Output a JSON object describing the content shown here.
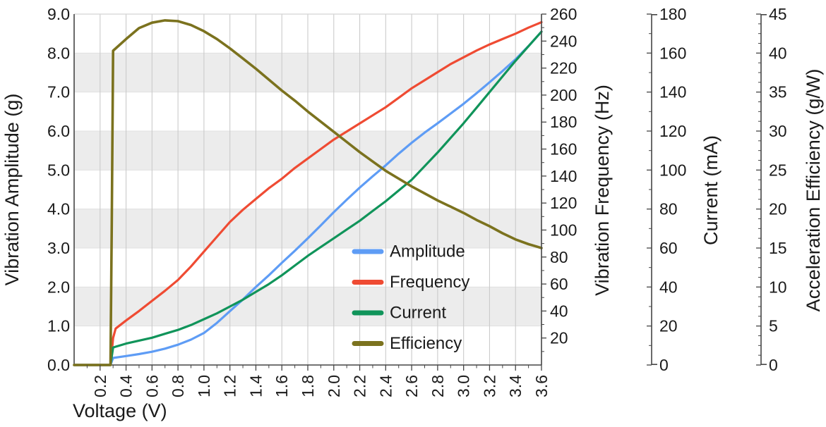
{
  "chart_data": {
    "type": "line",
    "title": "",
    "xlabel": "Voltage (V)",
    "xlim": [
      0,
      3.6
    ],
    "x_tick_values": [
      0.2,
      0.4,
      0.6,
      0.8,
      1.0,
      1.2,
      1.4,
      1.6,
      1.8,
      2.0,
      2.2,
      2.4,
      2.6,
      2.8,
      3.0,
      3.2,
      3.4,
      3.6
    ],
    "x_tick_labels": [
      "0.2",
      "0.4",
      "0.6",
      "0.8",
      "1.0",
      "1.2",
      "1.4",
      "1.6",
      "1.8",
      "2.0",
      "2.2",
      "2.4",
      "2.6",
      "2.8",
      "3.0",
      "3.2",
      "3.4",
      "3.6"
    ],
    "x_minor_step": 0.1,
    "grid": "vertical-gridlines-plus-horizontal-bands",
    "legend_position": "inside-right-middle",
    "axes": [
      {
        "id": "amplitude",
        "label": "Vibration Amplitude (g)",
        "side": "left",
        "range": [
          0,
          9
        ],
        "tick_values": [
          0,
          1,
          2,
          3,
          4,
          5,
          6,
          7,
          8,
          9
        ],
        "tick_labels": [
          "0.0",
          "1.0",
          "2.0",
          "3.0",
          "4.0",
          "5.0",
          "6.0",
          "7.0",
          "8.0",
          "9.0"
        ]
      },
      {
        "id": "frequency",
        "label": "Vibration Frequency (Hz)",
        "side": "right",
        "range": [
          0,
          260
        ],
        "tick_values": [
          20,
          40,
          60,
          80,
          100,
          120,
          140,
          160,
          180,
          200,
          220,
          240,
          260
        ],
        "tick_labels": [
          "20",
          "40",
          "60",
          "80",
          "100",
          "120",
          "140",
          "160",
          "180",
          "200",
          "220",
          "240",
          "260"
        ],
        "minor_step": 10
      },
      {
        "id": "current",
        "label": "Current (mA)",
        "side": "right-detached",
        "range": [
          0,
          180
        ],
        "tick_values": [
          0,
          20,
          40,
          60,
          80,
          100,
          120,
          140,
          160,
          180
        ],
        "tick_labels": [
          "0",
          "20",
          "40",
          "60",
          "80",
          "100",
          "120",
          "140",
          "160",
          "180"
        ],
        "minor_step": 10
      },
      {
        "id": "efficiency",
        "label": "Acceleration Efficiency (g/W)",
        "side": "right-detached",
        "range": [
          0,
          45
        ],
        "tick_values": [
          0,
          5,
          10,
          15,
          20,
          25,
          30,
          35,
          40,
          45
        ],
        "tick_labels": [
          "0",
          "5",
          "10",
          "15",
          "20",
          "25",
          "30",
          "35",
          "40",
          "45"
        ],
        "minor_step": 1.25
      }
    ],
    "series": [
      {
        "name": "Amplitude",
        "axis": "amplitude",
        "unit": "g",
        "color": "#5E9CF5",
        "x": [
          0,
          0.28,
          0.3,
          0.4,
          0.5,
          0.6,
          0.7,
          0.8,
          0.9,
          1.0,
          1.1,
          1.2,
          1.3,
          1.4,
          1.5,
          1.6,
          1.7,
          1.8,
          1.9,
          2.0,
          2.1,
          2.2,
          2.3,
          2.4,
          2.5,
          2.6,
          2.7,
          2.8,
          2.9,
          3.0,
          3.1,
          3.2,
          3.3,
          3.4,
          3.5,
          3.6
        ],
        "y": [
          0,
          0,
          0.18,
          0.23,
          0.28,
          0.34,
          0.42,
          0.52,
          0.65,
          0.82,
          1.08,
          1.38,
          1.68,
          2.0,
          2.3,
          2.62,
          2.93,
          3.25,
          3.58,
          3.92,
          4.24,
          4.55,
          4.84,
          5.12,
          5.42,
          5.7,
          5.96,
          6.2,
          6.45,
          6.7,
          6.97,
          7.25,
          7.54,
          7.84,
          8.18,
          8.55
        ]
      },
      {
        "name": "Frequency",
        "axis": "frequency",
        "unit": "Hz",
        "color": "#EF4B33",
        "x": [
          0,
          0.28,
          0.3,
          0.32,
          0.4,
          0.5,
          0.6,
          0.7,
          0.8,
          0.9,
          1.0,
          1.1,
          1.2,
          1.3,
          1.4,
          1.5,
          1.6,
          1.7,
          1.8,
          1.9,
          2.0,
          2.1,
          2.2,
          2.3,
          2.4,
          2.5,
          2.6,
          2.7,
          2.8,
          2.9,
          3.0,
          3.1,
          3.2,
          3.3,
          3.4,
          3.5,
          3.6
        ],
        "y": [
          0,
          0,
          20,
          27,
          33,
          40,
          47.5,
          55,
          63,
          73,
          84,
          95,
          106,
          115,
          123,
          131,
          138,
          146,
          153,
          160,
          167,
          173,
          179,
          185,
          191,
          198,
          205,
          211,
          217,
          223,
          228,
          233,
          237.5,
          241.5,
          245.5,
          250,
          254
        ]
      },
      {
        "name": "Current",
        "axis": "current",
        "unit": "mA",
        "color": "#10945A",
        "x": [
          0,
          0.28,
          0.3,
          0.4,
          0.5,
          0.6,
          0.7,
          0.8,
          0.9,
          1.0,
          1.1,
          1.2,
          1.3,
          1.4,
          1.5,
          1.6,
          1.7,
          1.8,
          1.9,
          2.0,
          2.1,
          2.2,
          2.3,
          2.4,
          2.5,
          2.6,
          2.7,
          2.8,
          2.9,
          3.0,
          3.1,
          3.2,
          3.3,
          3.4,
          3.5,
          3.6
        ],
        "y": [
          0,
          0,
          9,
          11,
          12.5,
          14,
          16,
          18,
          20.5,
          23.5,
          26.5,
          30,
          33.5,
          37.5,
          41.5,
          46,
          51,
          56,
          60.5,
          65,
          69.5,
          74,
          79,
          84,
          89.5,
          95,
          102,
          109,
          116.5,
          124,
          132,
          140,
          148,
          156,
          163.5,
          171
        ]
      },
      {
        "name": "Efficiency",
        "axis": "efficiency",
        "unit": "g/W",
        "color": "#7B721E",
        "x": [
          0,
          0.28,
          0.29,
          0.3,
          0.4,
          0.5,
          0.6,
          0.7,
          0.8,
          0.9,
          1.0,
          1.1,
          1.2,
          1.3,
          1.4,
          1.5,
          1.6,
          1.7,
          1.8,
          1.9,
          2.0,
          2.1,
          2.2,
          2.3,
          2.4,
          2.5,
          2.6,
          2.7,
          2.8,
          2.9,
          3.0,
          3.1,
          3.2,
          3.3,
          3.4,
          3.5,
          3.6
        ],
        "y": [
          0,
          0,
          18,
          40.3,
          41.8,
          43.2,
          43.9,
          44.2,
          44.1,
          43.6,
          42.8,
          41.8,
          40.6,
          39.3,
          38.0,
          36.6,
          35.2,
          33.9,
          32.5,
          31.2,
          29.9,
          28.6,
          27.3,
          26.1,
          24.9,
          23.9,
          22.9,
          22.0,
          21.1,
          20.3,
          19.5,
          18.6,
          17.8,
          16.9,
          16.1,
          15.5,
          15.0
        ]
      }
    ],
    "legend_labels": [
      "Amplitude",
      "Frequency",
      "Current",
      "Efficiency"
    ],
    "colors": {
      "band": "#ECECEC",
      "band_edge_line": "#E0E0E0",
      "vertical_gridline": "#CBCBCB",
      "top_spine": "#D4D4D4",
      "spine": "#454545",
      "text": "#1A1A1A"
    }
  }
}
